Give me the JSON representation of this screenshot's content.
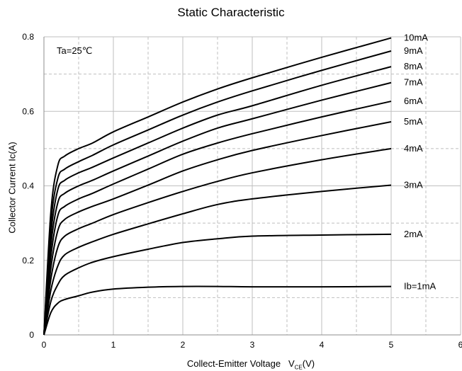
{
  "chart_data": {
    "type": "line",
    "title": "Static Characteristic",
    "xlabel": "Collect-Emitter Voltage",
    "xlabel_symbol": "V",
    "xlabel_sub": "CE",
    "xlabel_unit": "(V)",
    "ylabel": "Collector  Current   Ic(A)",
    "annotation": "Ta=25℃",
    "xlim": [
      0,
      6
    ],
    "ylim": [
      0,
      0.8
    ],
    "x_ticks": [
      "0",
      "1",
      "2",
      "3",
      "4",
      "5",
      "6"
    ],
    "y_ticks": [
      "0",
      "0.2",
      "0.4",
      "0.6",
      "0.8"
    ],
    "grid": true,
    "series": [
      {
        "name": "Ib=1mA",
        "x": [
          0,
          0.1,
          0.2,
          0.3,
          0.5,
          0.7,
          1.0,
          1.5,
          2.0,
          2.5,
          3.0,
          4.0,
          5.0
        ],
        "y": [
          0,
          0.06,
          0.085,
          0.095,
          0.105,
          0.115,
          0.123,
          0.128,
          0.13,
          0.13,
          0.129,
          0.129,
          0.13
        ]
      },
      {
        "name": "2mA",
        "x": [
          0,
          0.1,
          0.2,
          0.3,
          0.5,
          0.7,
          1.0,
          1.5,
          2.0,
          2.5,
          3.0,
          4.0,
          5.0
        ],
        "y": [
          0,
          0.09,
          0.135,
          0.16,
          0.18,
          0.195,
          0.21,
          0.23,
          0.248,
          0.258,
          0.265,
          0.268,
          0.27
        ]
      },
      {
        "name": "3mA",
        "x": [
          0,
          0.1,
          0.2,
          0.3,
          0.5,
          0.7,
          1.0,
          1.5,
          2.0,
          2.5,
          3.0,
          4.0,
          5.0
        ],
        "y": [
          0,
          0.12,
          0.185,
          0.215,
          0.235,
          0.25,
          0.27,
          0.298,
          0.325,
          0.35,
          0.365,
          0.385,
          0.402
        ]
      },
      {
        "name": "4mA",
        "x": [
          0,
          0.1,
          0.2,
          0.3,
          0.5,
          0.7,
          1.0,
          1.5,
          2.0,
          2.5,
          3.0,
          4.0,
          5.0
        ],
        "y": [
          0,
          0.15,
          0.235,
          0.265,
          0.285,
          0.3,
          0.323,
          0.355,
          0.385,
          0.412,
          0.435,
          0.47,
          0.5
        ]
      },
      {
        "name": "5mA",
        "x": [
          0,
          0.1,
          0.2,
          0.3,
          0.5,
          0.7,
          1.0,
          1.5,
          2.0,
          2.5,
          3.0,
          4.0,
          5.0
        ],
        "y": [
          0,
          0.18,
          0.28,
          0.31,
          0.33,
          0.345,
          0.365,
          0.402,
          0.44,
          0.47,
          0.495,
          0.535,
          0.572
        ]
      },
      {
        "name": "6mA",
        "x": [
          0,
          0.1,
          0.2,
          0.3,
          0.5,
          0.7,
          1.0,
          1.5,
          2.0,
          2.5,
          3.0,
          4.0,
          5.0
        ],
        "y": [
          0,
          0.21,
          0.32,
          0.345,
          0.365,
          0.38,
          0.405,
          0.445,
          0.485,
          0.515,
          0.54,
          0.585,
          0.627
        ]
      },
      {
        "name": "7mA",
        "x": [
          0,
          0.1,
          0.2,
          0.3,
          0.5,
          0.7,
          1.0,
          1.5,
          2.0,
          2.5,
          3.0,
          4.0,
          5.0
        ],
        "y": [
          0,
          0.24,
          0.355,
          0.38,
          0.4,
          0.415,
          0.44,
          0.48,
          0.52,
          0.555,
          0.58,
          0.63,
          0.677
        ]
      },
      {
        "name": "8mA",
        "x": [
          0,
          0.1,
          0.2,
          0.3,
          0.5,
          0.7,
          1.0,
          1.5,
          2.0,
          2.5,
          3.0,
          4.0,
          5.0
        ],
        "y": [
          0,
          0.27,
          0.39,
          0.415,
          0.435,
          0.45,
          0.475,
          0.515,
          0.555,
          0.59,
          0.615,
          0.67,
          0.72
        ]
      },
      {
        "name": "9mA",
        "x": [
          0,
          0.1,
          0.2,
          0.3,
          0.5,
          0.7,
          1.0,
          1.5,
          2.0,
          2.5,
          3.0,
          4.0,
          5.0
        ],
        "y": [
          0,
          0.3,
          0.42,
          0.445,
          0.465,
          0.482,
          0.51,
          0.55,
          0.59,
          0.625,
          0.655,
          0.71,
          0.762
        ]
      },
      {
        "name": "10mA",
        "x": [
          0,
          0.1,
          0.2,
          0.3,
          0.5,
          0.7,
          1.0,
          1.5,
          2.0,
          2.5,
          3.0,
          4.0,
          5.0
        ],
        "y": [
          0,
          0.33,
          0.455,
          0.48,
          0.5,
          0.515,
          0.545,
          0.585,
          0.625,
          0.66,
          0.69,
          0.745,
          0.797
        ]
      }
    ],
    "colors": {
      "line": "#000000",
      "grid": "#bfbfbf",
      "axis": "#8c8c8c"
    }
  }
}
